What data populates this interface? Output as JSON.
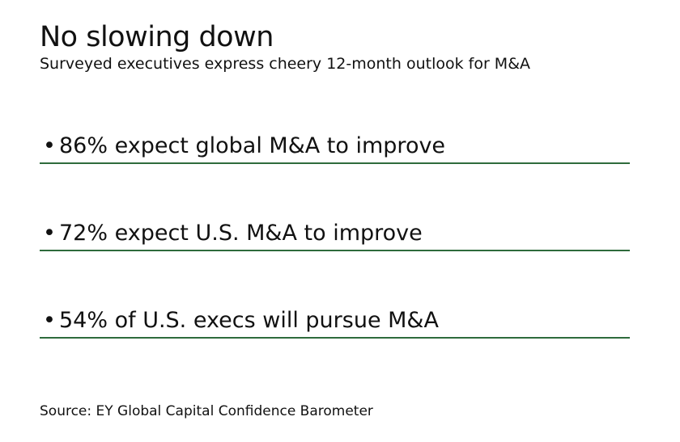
{
  "header": {
    "title": "No slowing down",
    "subtitle": "Surveyed executives express cheery 12-month outlook for M&A"
  },
  "stats": [
    {
      "bullet": "•",
      "text": "86% expect global M&A to improve"
    },
    {
      "bullet": "•",
      "text": "72% expect U.S. M&A to improve"
    },
    {
      "bullet": "•",
      "text": "54% of U.S. execs will pursue M&A"
    }
  ],
  "footer": {
    "source": "Source: EY Global Capital Confidence Barometer"
  },
  "colors": {
    "rule": "#2e6b3c",
    "text": "#111111",
    "background": "#ffffff"
  }
}
